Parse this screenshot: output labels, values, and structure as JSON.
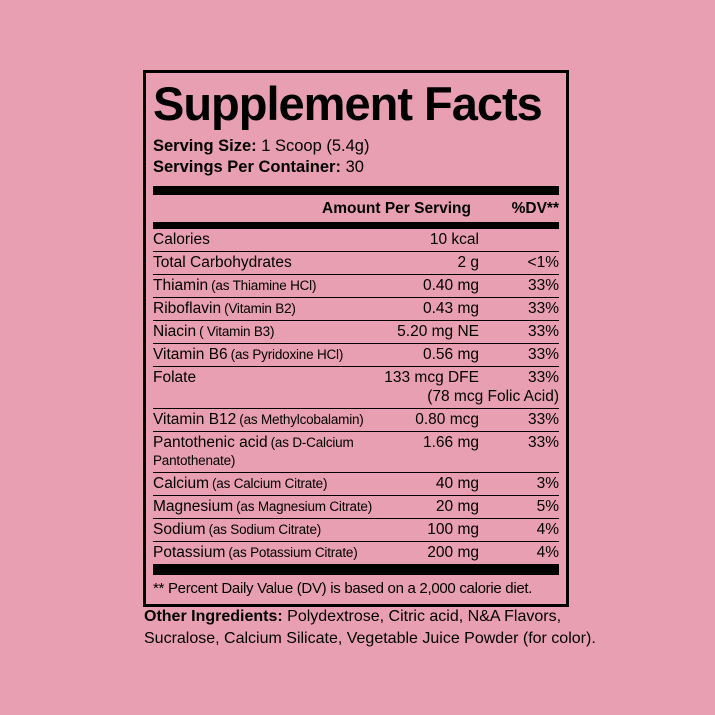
{
  "colors": {
    "background": "#e89fb2",
    "text": "#000000",
    "border": "#000000"
  },
  "label": {
    "title": "Supplement Facts",
    "serving_size": {
      "label": "Serving Size:",
      "value": "1 Scoop (5.4g)"
    },
    "servings": {
      "label": "Servings Per Container:",
      "value": "30"
    },
    "table": {
      "header": {
        "amount": "Amount Per Serving",
        "dv": "%DV**"
      },
      "rows": [
        {
          "name": "Calories",
          "detail": "",
          "amount": "10 kcal",
          "dv": ""
        },
        {
          "name": "Total Carbohydrates",
          "detail": "",
          "amount": "2 g",
          "dv": "<1%"
        },
        {
          "name": "Thiamin",
          "detail": "(as Thiamine HCl)",
          "amount": "0.40 mg",
          "dv": "33%"
        },
        {
          "name": "Riboflavin",
          "detail": "(Vitamin B2)",
          "amount": "0.43 mg",
          "dv": "33%"
        },
        {
          "name": "Niacin",
          "detail": "( Vitamin B3)",
          "amount": "5.20 mg NE",
          "dv": "33%"
        },
        {
          "name": "Vitamin B6",
          "detail": "(as Pyridoxine HCl)",
          "amount": "0.56 mg",
          "dv": "33%"
        },
        {
          "name": "Folate",
          "detail": "",
          "amount": "133 mcg DFE",
          "amount2": "(78 mcg Folic Acid)",
          "dv": "33%"
        },
        {
          "name": "Vitamin B12",
          "detail": "(as Methylcobalamin)",
          "amount": "0.80 mcg",
          "dv": "33%"
        },
        {
          "name": "Pantothenic acid",
          "detail": "(as D-Calcium Pantothenate)",
          "amount": "1.66 mg",
          "dv": "33%"
        },
        {
          "name": "Calcium",
          "detail": "(as Calcium Citrate)",
          "amount": "40 mg",
          "dv": "3%"
        },
        {
          "name": "Magnesium",
          "detail": "(as Magnesium Citrate)",
          "amount": "20 mg",
          "dv": "5%"
        },
        {
          "name": "Sodium",
          "detail": "(as Sodium Citrate)",
          "amount": "100 mg",
          "dv": "4%"
        },
        {
          "name": "Potassium",
          "detail": "(as Potassium Citrate)",
          "amount": "200 mg",
          "dv": "4%"
        }
      ]
    },
    "footnote": "** Percent Daily Value (DV) is based on a 2,000 calorie diet."
  },
  "other_ingredients": {
    "label": "Other Ingredients:",
    "lines": [
      "Polydextrose, Citric acid, N&A Flavors,",
      "Sucralose, Calcium Silicate, Vegetable Juice Powder (for color)."
    ]
  }
}
